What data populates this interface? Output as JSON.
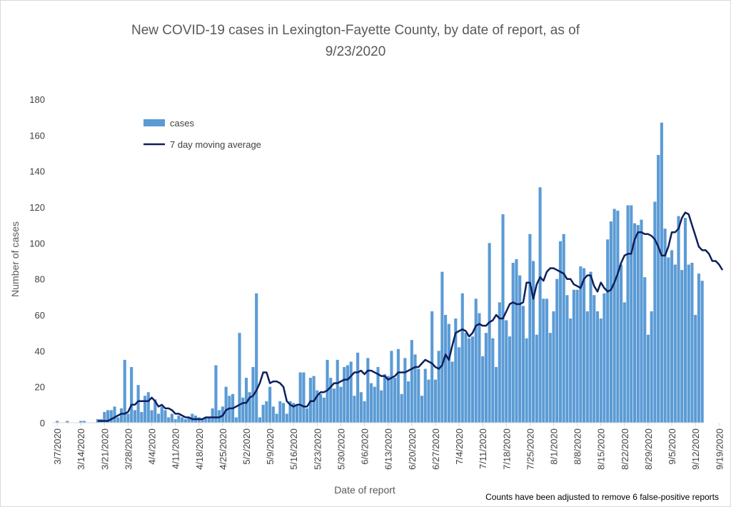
{
  "chart_data": {
    "type": "bar",
    "title_line1": "New COVID-19 cases in Lexington-Fayette County, by date of report, as of",
    "title_line2": "9/23/2020",
    "xlabel": "Date of report",
    "ylabel": "Number of cases",
    "ylim": [
      0,
      180
    ],
    "yticks": [
      "0",
      "20",
      "40",
      "60",
      "80",
      "100",
      "120",
      "140",
      "160",
      "180"
    ],
    "start_date": "3/6/2020",
    "x_tick_labels": [
      "3/7/2020",
      "3/14/2020",
      "3/21/2020",
      "3/28/2020",
      "4/4/2020",
      "4/11/2020",
      "4/18/2020",
      "4/25/2020",
      "5/2/2020",
      "5/9/2020",
      "5/16/2020",
      "5/23/2020",
      "5/30/2020",
      "6/6/2020",
      "6/13/2020",
      "6/20/2020",
      "6/27/2020",
      "7/4/2020",
      "7/11/2020",
      "7/18/2020",
      "7/25/2020",
      "8/1/2020",
      "8/8/2020",
      "8/15/2020",
      "8/22/2020",
      "8/29/2020",
      "9/5/2020",
      "9/12/2020",
      "9/19/2020"
    ],
    "grid": false,
    "legend_position": "top-left",
    "colors": {
      "bars": "#5b9bd5",
      "line": "#0d1f5c"
    },
    "series": [
      {
        "name": "cases",
        "type": "bar",
        "values": [
          0,
          1,
          0,
          0,
          1,
          0,
          0,
          0,
          1,
          1,
          0,
          0,
          0,
          2,
          2,
          6,
          7,
          7,
          9,
          3,
          8,
          35,
          5,
          31,
          7,
          21,
          6,
          15,
          17,
          7,
          13,
          5,
          9,
          7,
          3,
          5,
          2,
          4,
          3,
          2,
          3,
          5,
          4,
          3,
          2,
          3,
          3,
          8,
          32,
          7,
          9,
          20,
          15,
          16,
          3,
          50,
          14,
          25,
          17,
          31,
          72,
          3,
          10,
          12,
          20,
          9,
          5,
          12,
          11,
          5,
          12,
          11,
          10,
          28,
          28,
          8,
          25,
          26,
          18,
          16,
          14,
          35,
          25,
          19,
          35,
          20,
          31,
          32,
          34,
          15,
          39,
          17,
          12,
          36,
          22,
          20,
          31,
          18,
          27,
          26,
          40,
          25,
          41,
          16,
          36,
          23,
          46,
          38,
          30,
          15,
          30,
          24,
          62,
          24,
          40,
          84,
          60,
          55,
          34,
          58,
          42,
          72,
          50,
          47,
          48,
          69,
          61,
          37,
          50,
          100,
          47,
          31,
          67,
          116,
          57,
          48,
          89,
          91,
          82,
          65,
          47,
          105,
          90,
          49,
          131,
          69,
          69,
          50,
          62,
          80,
          101,
          105,
          71,
          58,
          74,
          74,
          87,
          86,
          62,
          84,
          71,
          62,
          58,
          72,
          102,
          112,
          119,
          118,
          88,
          67,
          121,
          121,
          111,
          110,
          113,
          81,
          49,
          62,
          123,
          149,
          167,
          108,
          92,
          96,
          88,
          115,
          85,
          114,
          88,
          89,
          60,
          83,
          79
        ]
      },
      {
        "name": "7 day moving average",
        "type": "line",
        "start_index": 13,
        "values": [
          1,
          1,
          1,
          1,
          2,
          3,
          4,
          5,
          5,
          6,
          10,
          10,
          12,
          12,
          12,
          12,
          14,
          12,
          9,
          10,
          8,
          8,
          7,
          5,
          5,
          4,
          3,
          3,
          2,
          2,
          2,
          2,
          3,
          3,
          3,
          3,
          3,
          4,
          7,
          8,
          8,
          9,
          10,
          11,
          11,
          14,
          15,
          18,
          22,
          28,
          28,
          22,
          23,
          23,
          22,
          20,
          12,
          10,
          9,
          10,
          10,
          9,
          9,
          12,
          12,
          15,
          17,
          17,
          18,
          20,
          22,
          22,
          23,
          24,
          24,
          26,
          28,
          28,
          29,
          27,
          29,
          29,
          28,
          27,
          26,
          26,
          24,
          25,
          26,
          28,
          28,
          28,
          29,
          30,
          31,
          31,
          33,
          35,
          34,
          33,
          31,
          30,
          32,
          38,
          35,
          43,
          50,
          51,
          52,
          51,
          48,
          50,
          54,
          55,
          54,
          54,
          56,
          57,
          60,
          58,
          58,
          62,
          66,
          67,
          66,
          66,
          67,
          78,
          78,
          69,
          77,
          81,
          79,
          84,
          86,
          86,
          85,
          84,
          83,
          80,
          80,
          77,
          76,
          75,
          80,
          82,
          82,
          76,
          73,
          78,
          75,
          73,
          74,
          78,
          83,
          89,
          93,
          94,
          94,
          102,
          106,
          106,
          105,
          105,
          104,
          102,
          98,
          93,
          93,
          98,
          106,
          106,
          108,
          114,
          117,
          116,
          110,
          104,
          98,
          96,
          96,
          94,
          90,
          90,
          88,
          85
        ]
      }
    ],
    "annotation": "Counts have been adjusted to remove 6 false-positive reports"
  }
}
